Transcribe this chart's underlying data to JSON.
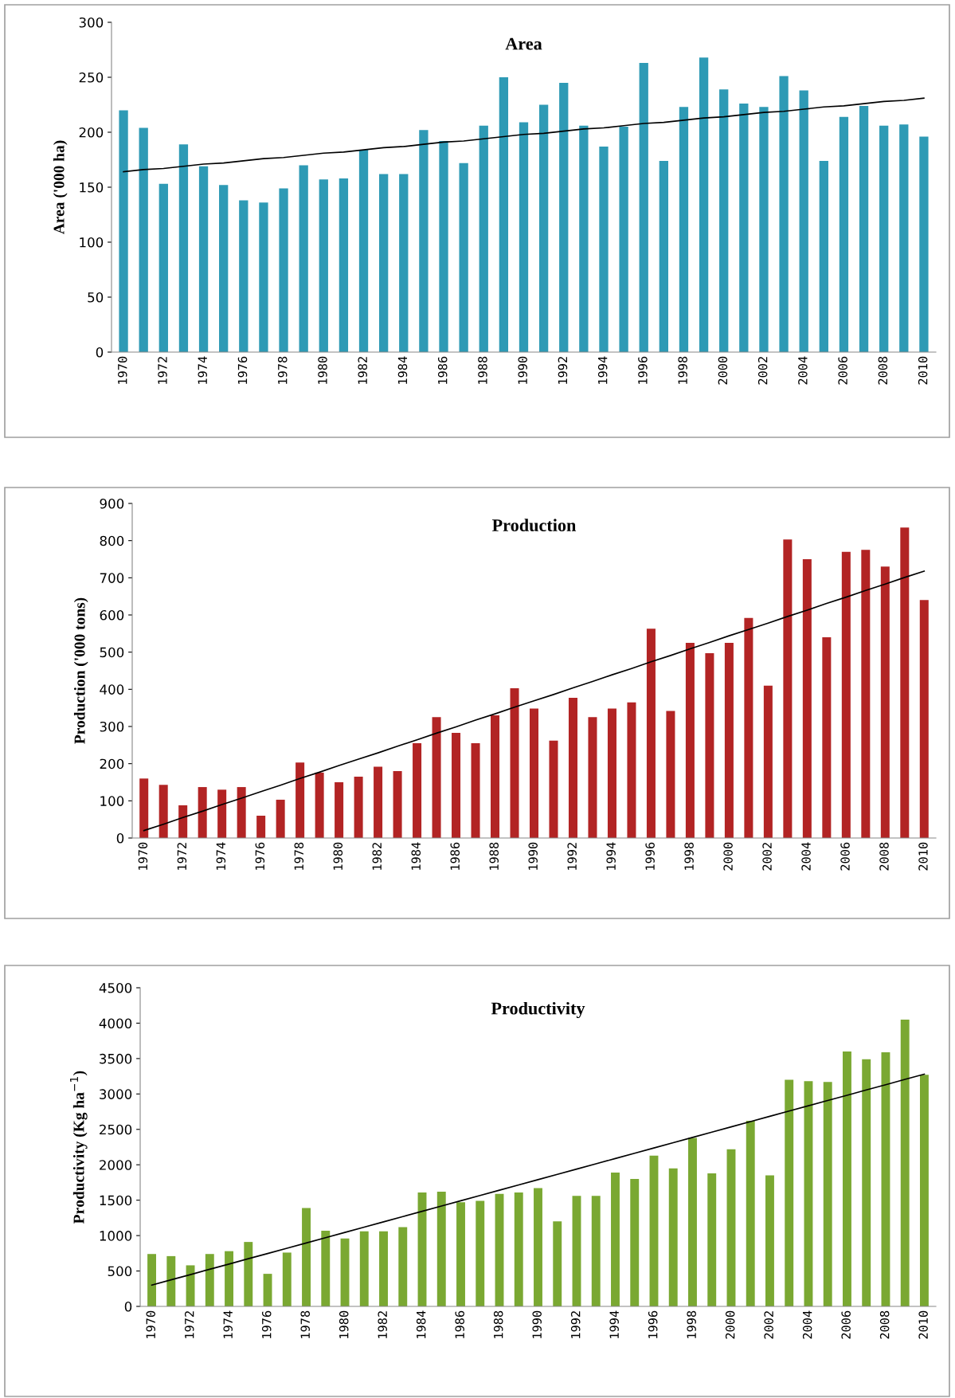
{
  "chart_data": [
    {
      "type": "bar",
      "title": "Area",
      "ylabel": "Area ('000 ha)",
      "categories": [
        "1970",
        null,
        "1972",
        null,
        "1974",
        null,
        "1976",
        null,
        "1978",
        null,
        "1980",
        null,
        "1982",
        null,
        "1984",
        null,
        "1986",
        null,
        "1988",
        null,
        "1990",
        null,
        "1992",
        null,
        "1994",
        null,
        "1996",
        null,
        "1998",
        null,
        "2000",
        null,
        "2002",
        null,
        "2004",
        null,
        "2006",
        null,
        "2008",
        null,
        "2010"
      ],
      "ylim": [
        0,
        300
      ],
      "yticks": [
        0,
        50,
        100,
        150,
        200,
        250,
        300
      ],
      "grid": false,
      "series": [
        {
          "color": "#2e9ab5",
          "values": [
            220,
            204,
            153,
            189,
            169,
            152,
            138,
            136,
            149,
            170,
            157,
            158,
            184,
            162,
            162,
            202,
            192,
            172,
            206,
            250,
            209,
            225,
            245,
            206,
            187,
            205,
            263,
            174,
            223,
            268,
            239,
            226,
            223,
            251,
            238,
            174,
            214,
            224,
            206,
            207,
            196
          ]
        },
        {
          "type": "line",
          "color": "#000000",
          "values": [
            164,
            166,
            167,
            169,
            171,
            172,
            174,
            176,
            177,
            179,
            181,
            182,
            184,
            186,
            187,
            189,
            191,
            192,
            194,
            196,
            198,
            199,
            201,
            203,
            204,
            206,
            208,
            209,
            211,
            213,
            214,
            216,
            218,
            219,
            221,
            223,
            224,
            226,
            228,
            229,
            231
          ]
        }
      ]
    },
    {
      "type": "bar",
      "title": "Production",
      "ylabel": "Production ('000 tons)",
      "categories": [
        "1970",
        null,
        "1972",
        null,
        "1974",
        null,
        "1976",
        null,
        "1978",
        null,
        "1980",
        null,
        "1982",
        null,
        "1984",
        null,
        "1986",
        null,
        "1988",
        null,
        "1990",
        null,
        "1992",
        null,
        "1994",
        null,
        "1996",
        null,
        "1998",
        null,
        "2000",
        null,
        "2002",
        null,
        "2004",
        null,
        "2006",
        null,
        "2008",
        null,
        "2010"
      ],
      "ylim": [
        0,
        900
      ],
      "yticks": [
        0,
        100,
        200,
        300,
        400,
        500,
        600,
        700,
        800,
        900
      ],
      "grid": false,
      "series": [
        {
          "color": "#b22424",
          "values": [
            160,
            143,
            88,
            137,
            130,
            137,
            60,
            103,
            203,
            176,
            150,
            165,
            192,
            180,
            255,
            325,
            283,
            255,
            330,
            403,
            348,
            262,
            377,
            325,
            348,
            365,
            563,
            342,
            525,
            497,
            525,
            592,
            410,
            803,
            750,
            540,
            770,
            775,
            730,
            835,
            640
          ]
        },
        {
          "type": "line",
          "color": "#000000",
          "values": [
            20,
            37,
            55,
            72,
            90,
            107,
            125,
            142,
            160,
            177,
            195,
            212,
            229,
            247,
            264,
            282,
            299,
            317,
            334,
            352,
            369,
            386,
            404,
            421,
            439,
            456,
            474,
            491,
            509,
            526,
            544,
            561,
            578,
            596,
            613,
            631,
            648,
            666,
            683,
            701,
            718
          ]
        }
      ]
    },
    {
      "type": "bar",
      "title": "Productivity",
      "ylabel": "Productivity (Kg ha$^{−1}$)",
      "categories": [
        "1970",
        null,
        "1972",
        null,
        "1974",
        null,
        "1976",
        null,
        "1978",
        null,
        "1980",
        null,
        "1982",
        null,
        "1984",
        null,
        "1986",
        null,
        "1988",
        null,
        "1990",
        null,
        "1992",
        null,
        "1994",
        null,
        "1996",
        null,
        "1998",
        null,
        "2000",
        null,
        "2002",
        null,
        "2004",
        null,
        "2006",
        null,
        "2008",
        null,
        "2010"
      ],
      "ylim": [
        0,
        4500
      ],
      "yticks": [
        0,
        500,
        1000,
        1500,
        2000,
        2500,
        3000,
        3500,
        4000,
        4500
      ],
      "grid": false,
      "series": [
        {
          "color": "#7aa832",
          "values": [
            740,
            710,
            580,
            740,
            780,
            910,
            460,
            760,
            1390,
            1070,
            960,
            1060,
            1060,
            1120,
            1610,
            1620,
            1470,
            1490,
            1590,
            1610,
            1670,
            1200,
            1560,
            1560,
            1890,
            1800,
            2130,
            1950,
            2380,
            1880,
            2220,
            2620,
            1850,
            3200,
            3180,
            3170,
            3600,
            3490,
            3590,
            4050,
            3270
          ]
        },
        {
          "type": "line",
          "color": "#000000",
          "values": [
            300,
            375,
            449,
            524,
            598,
            673,
            747,
            822,
            896,
            971,
            1045,
            1120,
            1194,
            1269,
            1343,
            1418,
            1492,
            1567,
            1641,
            1716,
            1790,
            1865,
            1939,
            2014,
            2088,
            2163,
            2237,
            2312,
            2386,
            2461,
            2535,
            2610,
            2684,
            2759,
            2833,
            2908,
            2982,
            3057,
            3131,
            3206,
            3280
          ]
        }
      ]
    }
  ]
}
